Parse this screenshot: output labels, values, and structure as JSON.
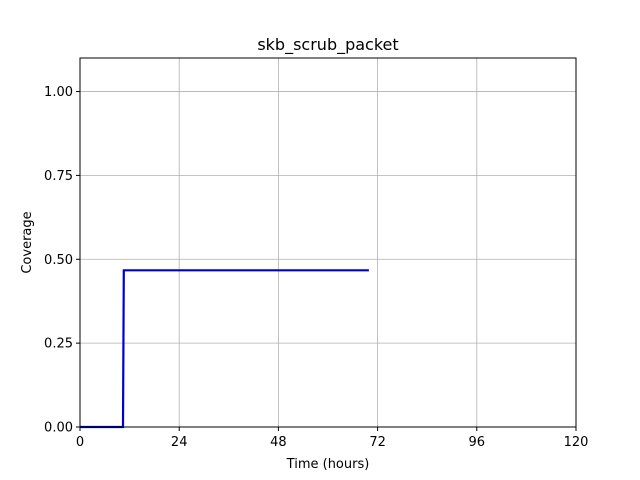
{
  "chart_data": {
    "type": "line",
    "title": "skb_scrub_packet",
    "xlabel": "Time (hours)",
    "ylabel": "Coverage",
    "xlim": [
      0,
      120
    ],
    "ylim": [
      0,
      1.1
    ],
    "x_ticks": [
      0,
      24,
      48,
      72,
      96,
      120
    ],
    "x_tick_labels": [
      "0",
      "24",
      "48",
      "72",
      "96",
      "120"
    ],
    "y_ticks": [
      0,
      0.25,
      0.5,
      0.75,
      1.0
    ],
    "y_tick_labels": [
      "0.00",
      "0.25",
      "0.50",
      "0.75",
      "1.00"
    ],
    "grid": true,
    "series": [
      {
        "color": "#0000cc",
        "x": [
          0,
          10.4,
          10.6,
          69.9
        ],
        "y": [
          0.0,
          0.0,
          0.467,
          0.467
        ]
      }
    ]
  }
}
